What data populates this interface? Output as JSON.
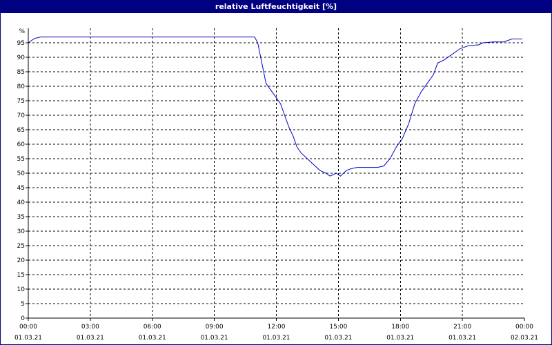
{
  "window": {
    "title": "relative Luftfeuchtigkeit [%]"
  },
  "colors": {
    "titlebar": "#000080",
    "line": "#0000c0",
    "grid": "#000000",
    "axis": "#000000"
  },
  "chart_data": {
    "type": "line",
    "title": "relative Luftfeuchtigkeit [%]",
    "xlabel": "",
    "ylabel": "%",
    "ylim": [
      0,
      100
    ],
    "y_ticks": [
      0,
      5,
      10,
      15,
      20,
      25,
      30,
      35,
      40,
      45,
      50,
      55,
      60,
      65,
      70,
      75,
      80,
      85,
      90,
      95
    ],
    "x_range_hours": [
      0,
      24
    ],
    "x_ticks": [
      {
        "time": "00:00",
        "date": "01.03.21",
        "hour": 0
      },
      {
        "time": "03:00",
        "date": "01.03.21",
        "hour": 3
      },
      {
        "time": "06:00",
        "date": "01.03.21",
        "hour": 6
      },
      {
        "time": "09:00",
        "date": "01.03.21",
        "hour": 9
      },
      {
        "time": "12:00",
        "date": "01.03.21",
        "hour": 12
      },
      {
        "time": "15:00",
        "date": "01.03.21",
        "hour": 15
      },
      {
        "time": "18:00",
        "date": "01.03.21",
        "hour": 18
      },
      {
        "time": "21:00",
        "date": "01.03.21",
        "hour": 21
      },
      {
        "time": "00:00",
        "date": "02.03.21",
        "hour": 24
      }
    ],
    "grid": true,
    "series": [
      {
        "x": [
          0,
          0.3,
          0.6,
          1,
          3,
          6,
          9,
          10.5,
          10.95,
          11.1,
          11.3,
          11.5,
          11.7,
          11.9,
          12.2,
          12.4,
          12.6,
          12.8,
          13.0,
          13.2,
          13.5,
          13.8,
          14.1,
          14.4,
          14.6,
          14.9,
          15.1,
          15.25,
          15.4,
          15.6,
          15.9,
          16.2,
          16.6,
          16.9,
          17.2,
          17.5,
          17.8,
          18.1,
          18.4,
          18.7,
          19.0,
          19.3,
          19.6,
          19.8,
          20.1,
          20.5,
          20.9,
          21.3,
          21.8,
          22.0,
          22.5,
          22.9,
          23.0,
          23.4,
          23.9
        ],
        "y": [
          95,
          96.5,
          97,
          97,
          97,
          97,
          97,
          97,
          97,
          95,
          88,
          81,
          79,
          77,
          74,
          70,
          66,
          63,
          59,
          57,
          55,
          53,
          51,
          50,
          49,
          50,
          49,
          50,
          51,
          51.5,
          52,
          52,
          52,
          52,
          52.5,
          55,
          59,
          62,
          67,
          74,
          78,
          81,
          84,
          88,
          89,
          91,
          93,
          94,
          94.3,
          95,
          95.3,
          95.3,
          95.3,
          96.3,
          96.3
        ]
      }
    ]
  }
}
